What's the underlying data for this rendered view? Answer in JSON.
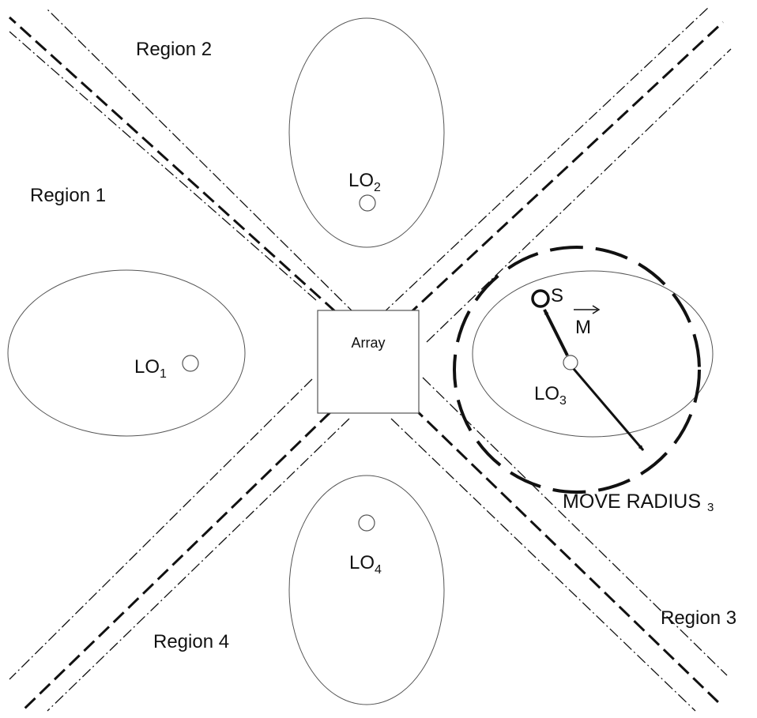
{
  "regions": {
    "region_1": "Region 1",
    "region_2": "Region 2",
    "region_3": "Region 3",
    "region_4": "Region 4"
  },
  "array": {
    "label": "Array"
  },
  "locations": {
    "lo1": {
      "main": "LO",
      "sub": "1"
    },
    "lo2": {
      "main": "LO",
      "sub": "2"
    },
    "lo3": {
      "main": "LO",
      "sub": "3"
    },
    "lo4": {
      "main": "LO",
      "sub": "4"
    }
  },
  "source": {
    "label": "S"
  },
  "vector": {
    "label": "M"
  },
  "move_radius": {
    "main": "MOVE RADIUS",
    "sub": "3"
  },
  "colors": {
    "stroke": "#111111",
    "thin_stroke": "#555555",
    "background": "#ffffff"
  }
}
